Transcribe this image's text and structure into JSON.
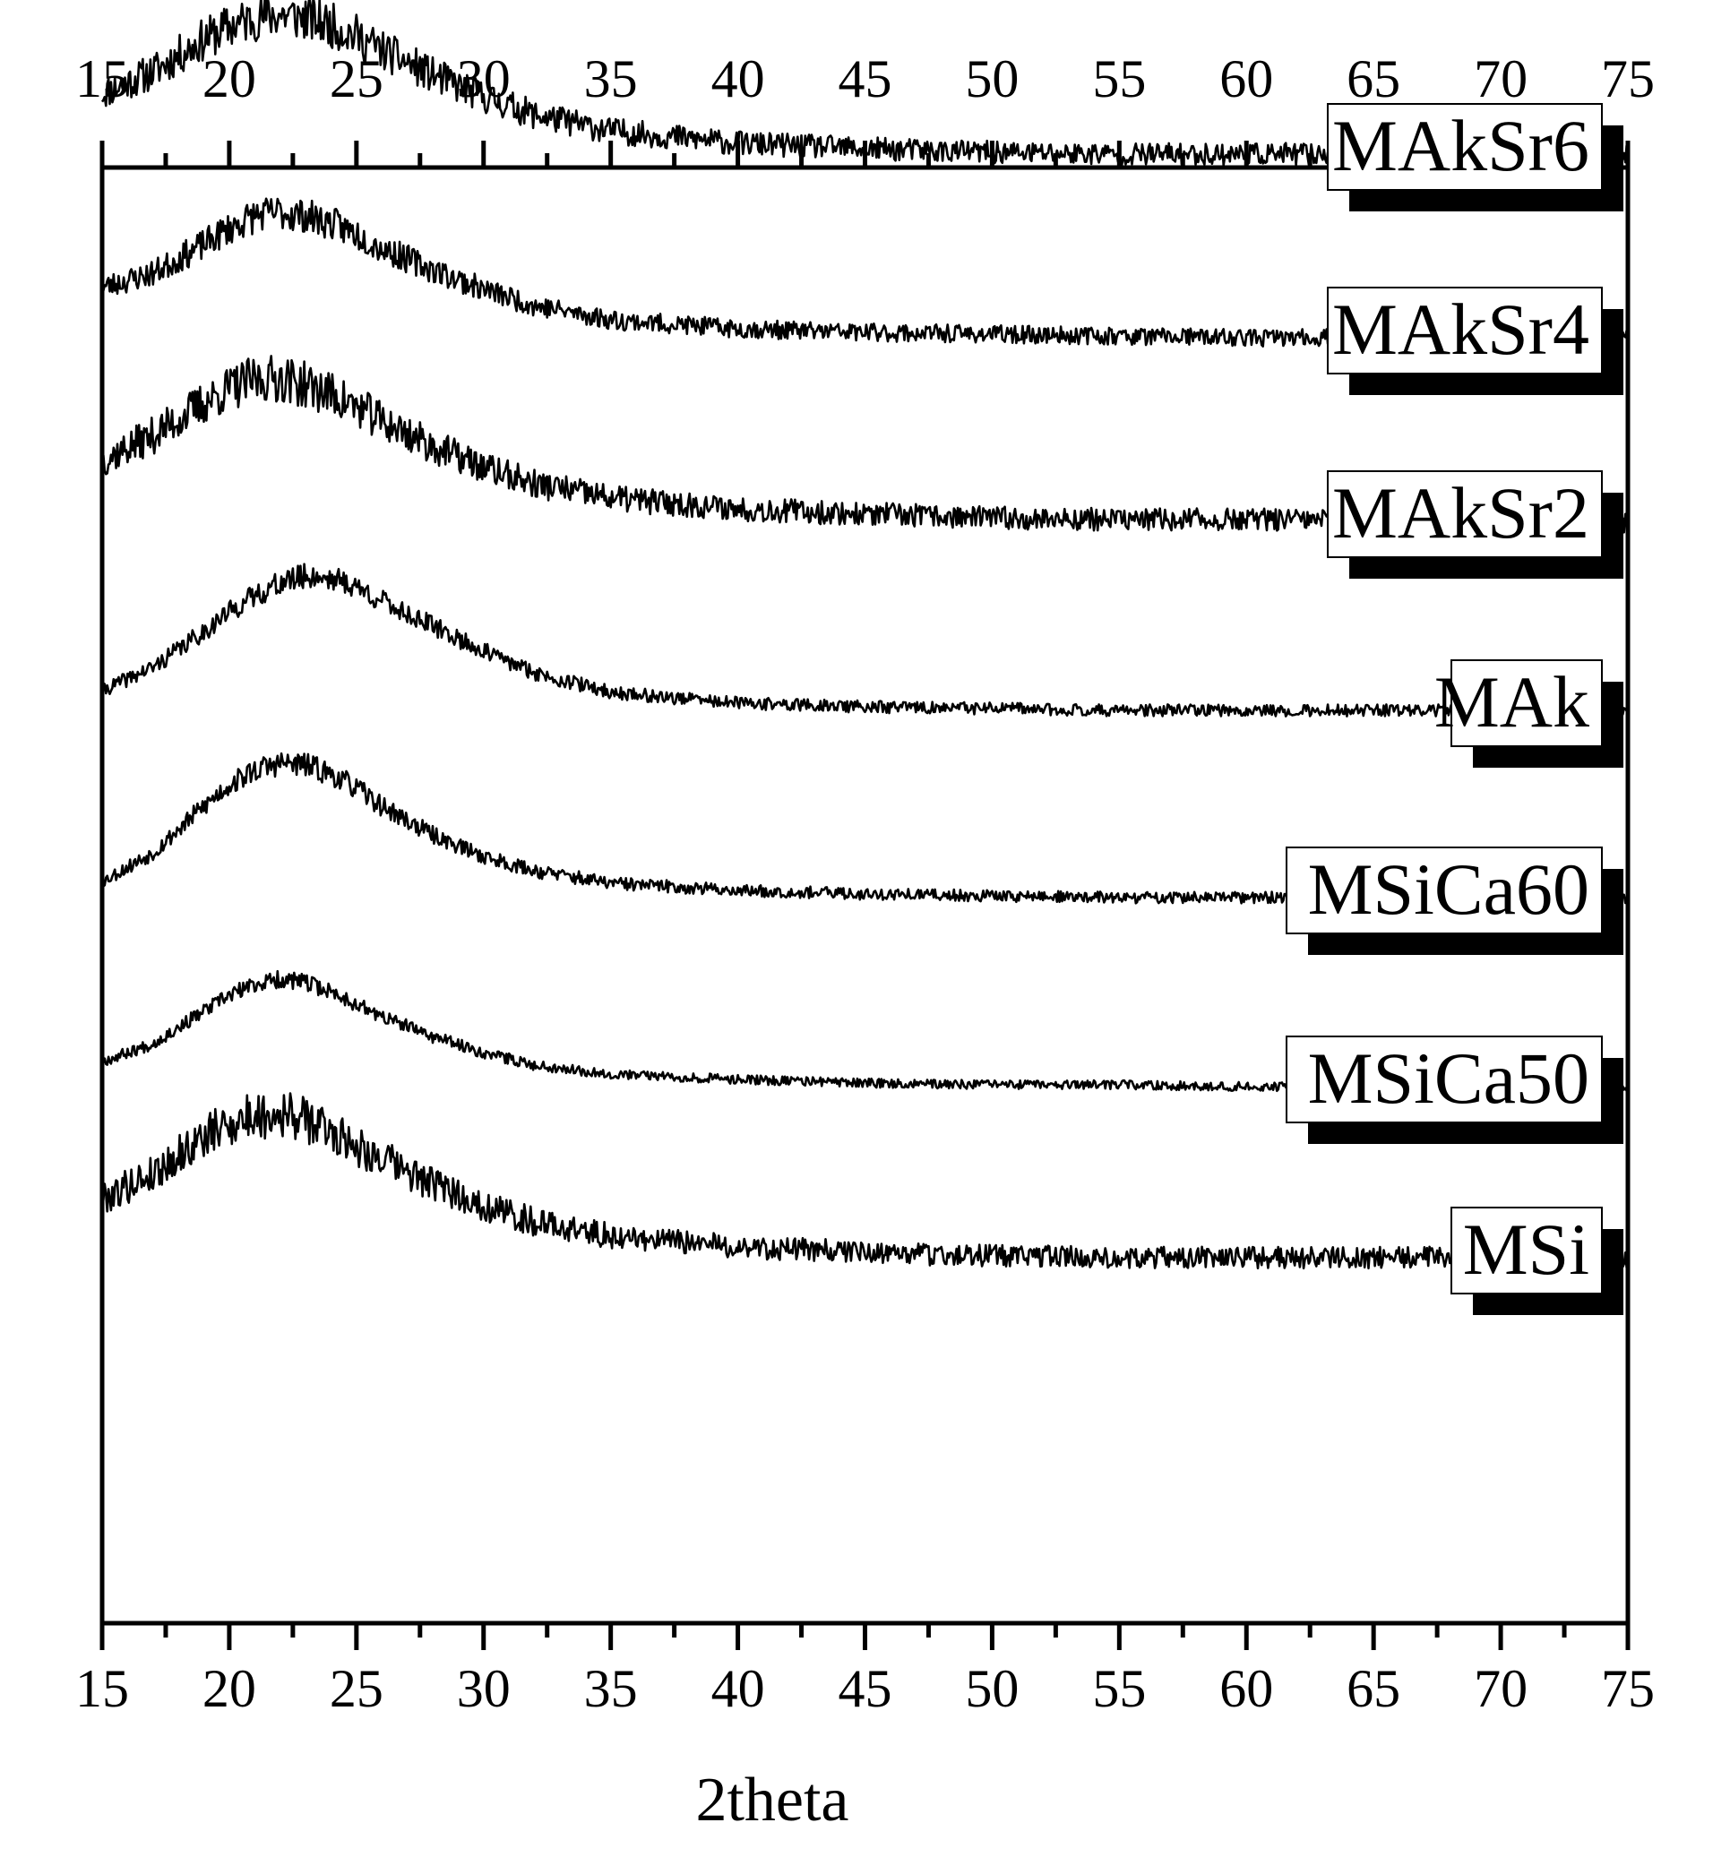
{
  "chart_data": {
    "type": "line",
    "title": "",
    "xlabel": "2theta",
    "ylabel": "",
    "xlim": [
      15,
      75
    ],
    "x_ticks": [
      "15",
      "20",
      "25",
      "30",
      "35",
      "40",
      "45",
      "50",
      "55",
      "60",
      "65",
      "70",
      "75"
    ],
    "x_ticks_top": [
      "15",
      "20",
      "25",
      "30",
      "35",
      "40",
      "45",
      "50",
      "55",
      "60",
      "65",
      "70",
      "75"
    ],
    "y_axis_labels_shown": false,
    "grid": false,
    "legend": "labels at right end of each curve, boxed with shadow",
    "colors": {
      "line": "#000000",
      "background": "#ffffff",
      "label_box": "#ffffff",
      "label_shadow": "#000000"
    },
    "note_layout": "curves are vertically stacked (offset) diffraction patterns; y values are relative intensity in arbitrary units",
    "x_profile": [
      15,
      17,
      19,
      20,
      21,
      22,
      23,
      24,
      25,
      26,
      28,
      30,
      32,
      35,
      40,
      45,
      50,
      55,
      60,
      65,
      70,
      75
    ],
    "series": [
      {
        "name": "MAkSr6",
        "offset": 6,
        "noise": 0.09,
        "seed": 11,
        "values": [
          0.48,
          0.6,
          0.78,
          0.85,
          0.9,
          0.92,
          0.9,
          0.86,
          0.8,
          0.72,
          0.58,
          0.46,
          0.36,
          0.27,
          0.2,
          0.17,
          0.15,
          0.14,
          0.14,
          0.14,
          0.14,
          0.14
        ]
      },
      {
        "name": "MAkSr4",
        "offset": 5,
        "noise": 0.07,
        "seed": 23,
        "values": [
          0.42,
          0.5,
          0.66,
          0.75,
          0.82,
          0.84,
          0.82,
          0.78,
          0.72,
          0.64,
          0.52,
          0.41,
          0.32,
          0.24,
          0.19,
          0.17,
          0.16,
          0.15,
          0.14,
          0.14,
          0.14,
          0.14
        ]
      },
      {
        "name": "MAkSr2",
        "offset": 4,
        "noise": 0.09,
        "seed": 37,
        "values": [
          0.48,
          0.62,
          0.8,
          0.88,
          0.93,
          0.94,
          0.9,
          0.85,
          0.78,
          0.7,
          0.56,
          0.44,
          0.35,
          0.27,
          0.21,
          0.18,
          0.16,
          0.15,
          0.15,
          0.14,
          0.14,
          0.14
        ]
      },
      {
        "name": "MAk",
        "offset": 3,
        "noise": 0.05,
        "seed": 41,
        "values": [
          0.22,
          0.35,
          0.55,
          0.66,
          0.75,
          0.82,
          0.86,
          0.85,
          0.8,
          0.72,
          0.58,
          0.44,
          0.32,
          0.21,
          0.15,
          0.13,
          0.12,
          0.11,
          0.11,
          0.11,
          0.11,
          0.11
        ]
      },
      {
        "name": "MSiCa60",
        "offset": 2,
        "noise": 0.05,
        "seed": 53,
        "values": [
          0.18,
          0.34,
          0.6,
          0.72,
          0.8,
          0.84,
          0.83,
          0.78,
          0.7,
          0.6,
          0.44,
          0.32,
          0.24,
          0.17,
          0.13,
          0.11,
          0.1,
          0.09,
          0.09,
          0.09,
          0.09,
          0.09
        ]
      },
      {
        "name": "MSiCa50",
        "offset": 1,
        "noise": 0.04,
        "seed": 67,
        "values": [
          0.2,
          0.3,
          0.48,
          0.57,
          0.63,
          0.66,
          0.64,
          0.59,
          0.52,
          0.45,
          0.34,
          0.25,
          0.18,
          0.13,
          0.1,
          0.08,
          0.07,
          0.07,
          0.06,
          0.06,
          0.06,
          0.06
        ]
      },
      {
        "name": "MSi",
        "offset": 0,
        "noise": 0.09,
        "seed": 79,
        "values": [
          0.46,
          0.6,
          0.8,
          0.88,
          0.92,
          0.94,
          0.9,
          0.84,
          0.76,
          0.68,
          0.54,
          0.42,
          0.33,
          0.25,
          0.19,
          0.16,
          0.14,
          0.13,
          0.13,
          0.13,
          0.13,
          0.13
        ]
      }
    ]
  }
}
